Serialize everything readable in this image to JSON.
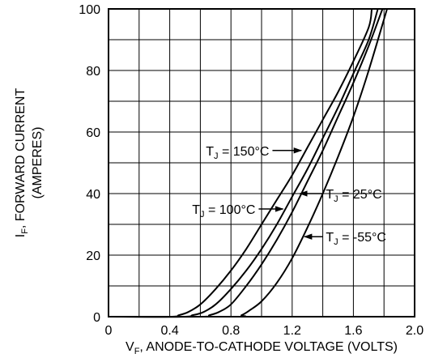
{
  "chart_data": {
    "type": "line",
    "title": "",
    "xlabel": {
      "main": "V",
      "sub": "F",
      "rest": ", ANODE-TO-CATHODE VOLTAGE (VOLTS)"
    },
    "ylabel": {
      "line1_main": "I",
      "line1_sub": "F",
      "line1_rest": ", FORWARD CURRENT",
      "line2": "(AMPERES)"
    },
    "xlim": [
      0,
      2.0
    ],
    "ylim": [
      0,
      100
    ],
    "x_tick_labels": [
      {
        "value": 0,
        "label": "0"
      },
      {
        "value": 0.4,
        "label": "0.4"
      },
      {
        "value": 0.8,
        "label": "0.8"
      },
      {
        "value": 1.2,
        "label": "1.2"
      },
      {
        "value": 1.6,
        "label": "1.6"
      },
      {
        "value": 2.0,
        "label": "2.0"
      }
    ],
    "y_tick_labels": [
      {
        "value": 0,
        "label": "0"
      },
      {
        "value": 20,
        "label": "20"
      },
      {
        "value": 40,
        "label": "40"
      },
      {
        "value": 60,
        "label": "60"
      },
      {
        "value": 80,
        "label": "80"
      },
      {
        "value": 100,
        "label": "100"
      }
    ],
    "grid": true,
    "x_grid_step": 0.2,
    "y_grid_step": 10,
    "series": [
      {
        "key": "tj150",
        "label_main": "T",
        "label_sub": "J",
        "label_rest": " = 150°C",
        "x": [
          0.0,
          0.4,
          0.46,
          0.52,
          0.6,
          0.7,
          0.8,
          0.9,
          1.0,
          1.1,
          1.2,
          1.3,
          1.4,
          1.5,
          1.6,
          1.7,
          1.72
        ],
        "y": [
          0,
          0,
          0.5,
          1.5,
          4,
          9,
          15,
          22,
          30,
          38,
          46,
          55,
          64,
          73,
          83,
          94,
          100
        ]
      },
      {
        "key": "tj100",
        "label_main": "T",
        "label_sub": "J",
        "label_rest": " = 100°C",
        "x": [
          0.0,
          0.48,
          0.55,
          0.62,
          0.7,
          0.8,
          0.9,
          1.0,
          1.1,
          1.2,
          1.3,
          1.4,
          1.5,
          1.6,
          1.7,
          1.76
        ],
        "y": [
          0,
          0,
          0.5,
          1.5,
          4,
          9,
          15,
          22,
          30,
          39,
          48,
          58,
          68,
          79,
          90,
          100
        ]
      },
      {
        "key": "tj25",
        "label_main": "T",
        "label_sub": "J",
        "label_rest": " = 25°C",
        "x": [
          0.0,
          0.6,
          0.66,
          0.72,
          0.8,
          0.9,
          1.0,
          1.1,
          1.2,
          1.3,
          1.4,
          1.5,
          1.6,
          1.7,
          1.79
        ],
        "y": [
          0,
          0,
          0.5,
          1.5,
          4,
          10,
          17,
          25,
          34,
          44,
          54,
          65,
          76,
          88,
          100
        ]
      },
      {
        "key": "tjm55",
        "label_main": "T",
        "label_sub": "J",
        "label_rest": " = -55°C",
        "x": [
          0.0,
          0.82,
          0.87,
          0.92,
          1.0,
          1.1,
          1.2,
          1.3,
          1.4,
          1.5,
          1.6,
          1.7,
          1.82
        ],
        "y": [
          0,
          0,
          0.5,
          2,
          5,
          11,
          19,
          29,
          40,
          52,
          65,
          80,
          100
        ]
      }
    ],
    "annotations": [
      {
        "series": "tj150",
        "label_x": 1.05,
        "label_y": 54,
        "arrow_to_x": 1.26,
        "arrow_to_y": 54,
        "anchor": "end"
      },
      {
        "series": "tj100",
        "label_x": 0.96,
        "label_y": 35,
        "arrow_to_x": 1.14,
        "arrow_to_y": 35,
        "anchor": "end"
      },
      {
        "series": "tj25",
        "label_x": 1.42,
        "label_y": 40,
        "arrow_to_x": 1.25,
        "arrow_to_y": 40,
        "anchor": "start"
      },
      {
        "series": "tjm55",
        "label_x": 1.42,
        "label_y": 26,
        "arrow_to_x": 1.28,
        "arrow_to_y": 26,
        "anchor": "start"
      }
    ]
  }
}
